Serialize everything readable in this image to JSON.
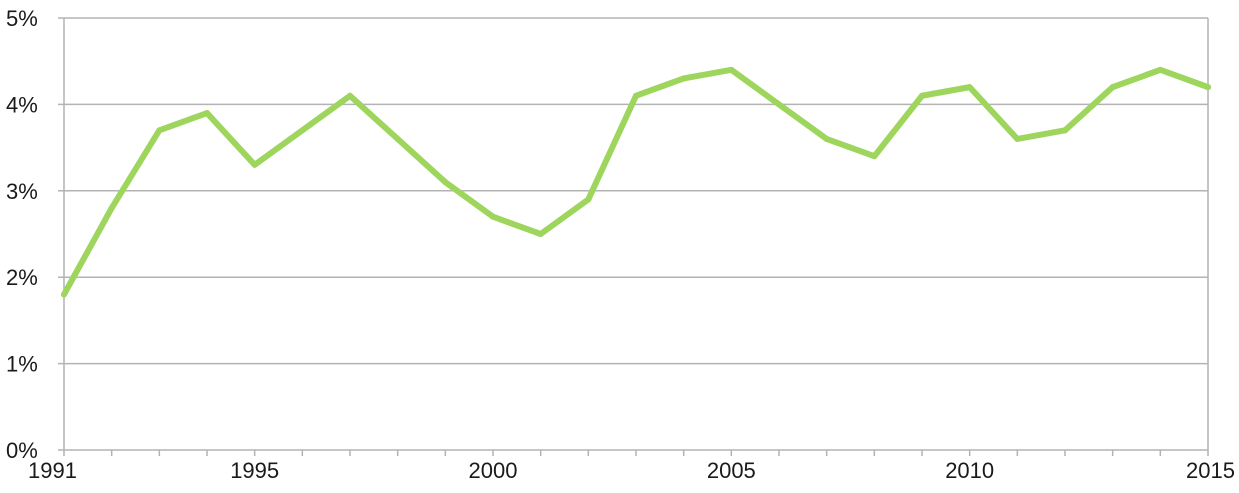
{
  "chart_data": {
    "type": "line",
    "title": "",
    "xlabel": "",
    "ylabel": "",
    "x": [
      1991,
      1992,
      1993,
      1994,
      1995,
      1996,
      1997,
      1998,
      1999,
      2000,
      2001,
      2002,
      2003,
      2004,
      2005,
      2006,
      2007,
      2008,
      2009,
      2010,
      2011,
      2012,
      2013,
      2014,
      2015
    ],
    "series": [
      {
        "values": [
          1.8,
          2.8,
          3.7,
          3.9,
          3.3,
          3.7,
          4.1,
          3.6,
          3.1,
          2.7,
          2.5,
          2.9,
          4.1,
          4.3,
          4.4,
          4.0,
          3.6,
          3.4,
          4.1,
          4.2,
          3.6,
          3.7,
          4.2,
          4.4,
          4.2
        ],
        "color": "#9ed55c"
      }
    ],
    "ylim": [
      0,
      5
    ],
    "xlim": [
      1991,
      2015
    ],
    "y_ticks": [
      0,
      1,
      2,
      3,
      4,
      5
    ],
    "y_tick_labels": [
      "0%",
      "1%",
      "2%",
      "3%",
      "4%",
      "5%"
    ],
    "x_tick_labels": [
      "1991",
      "1995",
      "2000",
      "2005",
      "2010",
      "2015"
    ],
    "x_tick_values": [
      1991,
      1995,
      2000,
      2005,
      2010,
      2015
    ],
    "grid": true,
    "legend": "none"
  }
}
